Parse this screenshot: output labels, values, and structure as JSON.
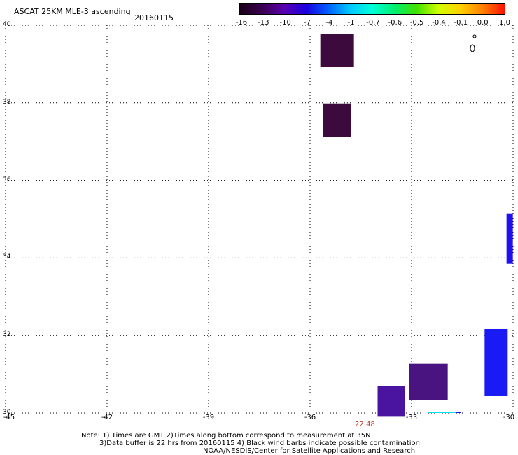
{
  "header": {
    "title": "ASCAT 25KM MLE-3 ascending",
    "date": "20160115"
  },
  "colorbar": {
    "labels": [
      "-16",
      "-13",
      "-10",
      "-7",
      "-4",
      "-1",
      "-0.7",
      "-0.6",
      "-0.5",
      "-0.4",
      "-0.1",
      "0.0",
      "1.0"
    ],
    "colors": [
      "#1a0018",
      "#3a0050",
      "#5a00b0",
      "#1a00e0",
      "#0060ff",
      "#00c8ff",
      "#00ffd8",
      "#00f070",
      "#40e000",
      "#d0ff00",
      "#ffd000",
      "#ff8000",
      "#ff1000"
    ]
  },
  "axes": {
    "y_labels": [
      "40",
      "38",
      "36",
      "34",
      "32",
      "30"
    ],
    "x_labels": [
      "-45",
      "-42",
      "-39",
      "-36",
      "-33",
      "-30"
    ]
  },
  "cells": [
    {
      "lon": -35.2,
      "lat": 39.35,
      "value": -16,
      "color": "#3c0a3c"
    },
    {
      "lon": -35.2,
      "lat": 37.55,
      "value": -16,
      "color": "#3c0a3c"
    },
    {
      "lon": -30.1,
      "lat": 34.5,
      "value": -7,
      "color": "#2010f0"
    },
    {
      "lon": -30.5,
      "lat": 31.3,
      "value": -7,
      "color": "#1a1af5"
    },
    {
      "lon": -32.5,
      "lat": 30.8,
      "value": -13,
      "color": "#4a1480"
    },
    {
      "lon": -33.6,
      "lat": 30.3,
      "value": -10,
      "color": "#4a14a0"
    }
  ],
  "overpass_time": "22:48",
  "notes": {
    "line1": "Note: 1) Times are GMT 2)Times along bottom correspond to measurement at 35N",
    "line2": "3)Data buffer is 22 hrs from 20160115 4) Black wind barbs indicate possible contamination",
    "line3": "NOAA/NESDIS/Center for Satellite Applications and Research"
  }
}
